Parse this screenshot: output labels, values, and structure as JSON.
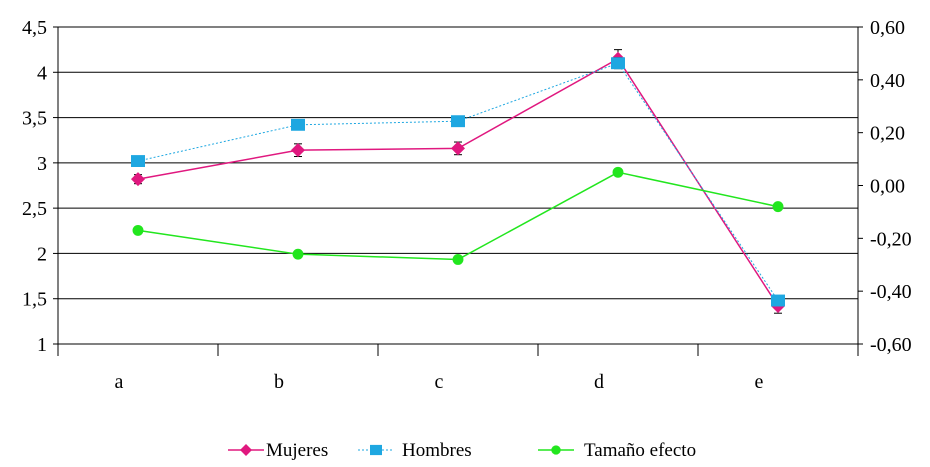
{
  "chart_data": {
    "type": "line",
    "categories": [
      "a",
      "b",
      "c",
      "d",
      "e"
    ],
    "y_left": {
      "range": [
        1,
        4.5
      ],
      "tick_values": [
        1,
        1.5,
        2,
        2.5,
        3,
        3.5,
        4,
        4.5
      ],
      "tick_labels": [
        "1",
        "1,5",
        "2",
        "2,5",
        "3",
        "3,5",
        "4",
        "4,5"
      ]
    },
    "y_right": {
      "range": [
        -0.6,
        0.6
      ],
      "tick_values": [
        -0.6,
        -0.4,
        -0.2,
        0.0,
        0.2,
        0.4,
        0.6
      ],
      "tick_labels": [
        "-0,60",
        "-0,40",
        "-0,20",
        "0,00",
        "0,20",
        "0,40",
        "0,60"
      ]
    },
    "grid": true,
    "legend_position": "bottom",
    "series": [
      {
        "name": "Mujeres",
        "axis": "left",
        "color": "#e0187f",
        "marker": "diamond",
        "line_style": "solid",
        "values": [
          2.82,
          3.14,
          3.16,
          4.15,
          1.42
        ],
        "error": [
          0.05,
          0.07,
          0.07,
          0.1,
          0.08
        ]
      },
      {
        "name": "Hombres",
        "axis": "left",
        "color": "#1ea7e1",
        "marker": "square",
        "line_style": "dotted",
        "values": [
          3.02,
          3.42,
          3.46,
          4.1,
          1.48
        ],
        "error": [
          0.03,
          0.05,
          0.05,
          0.06,
          0.05
        ]
      },
      {
        "name": "Tamaño efecto",
        "axis": "right",
        "color": "#22e61e",
        "marker": "circle",
        "line_style": "solid",
        "values": [
          -0.17,
          -0.26,
          -0.28,
          0.05,
          -0.08
        ]
      }
    ]
  }
}
